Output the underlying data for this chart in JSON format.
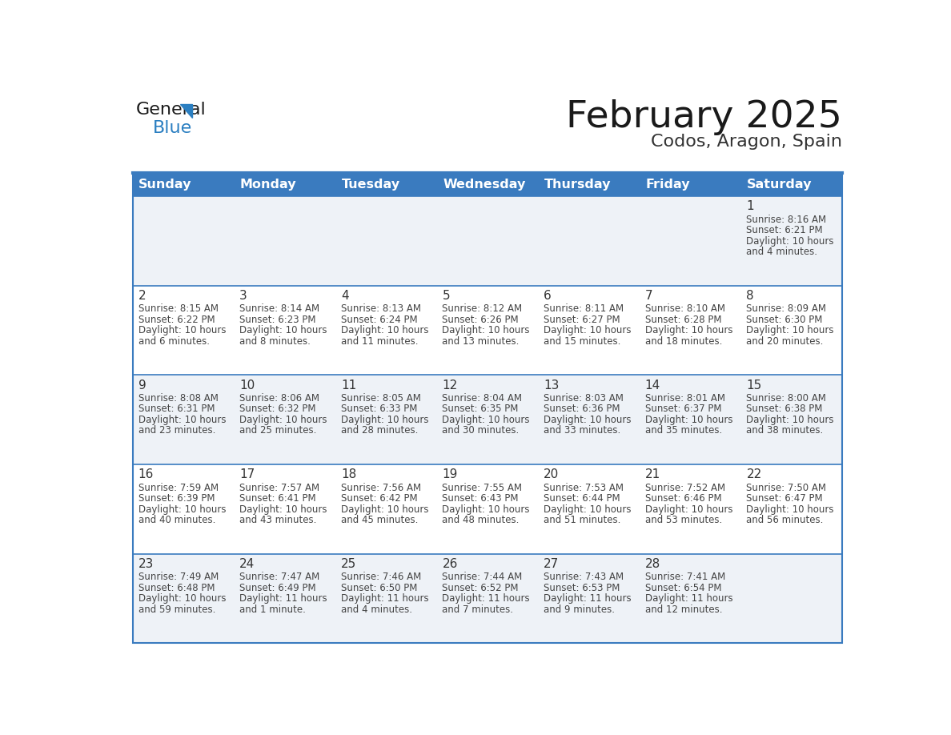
{
  "title": "February 2025",
  "subtitle": "Codos, Aragon, Spain",
  "days_of_week": [
    "Sunday",
    "Monday",
    "Tuesday",
    "Wednesday",
    "Thursday",
    "Friday",
    "Saturday"
  ],
  "header_bg": "#3a7bbf",
  "header_text": "#ffffff",
  "row_bg_odd": "#eef2f7",
  "row_bg_even": "#ffffff",
  "border_color": "#3a7bbf",
  "day_number_color": "#333333",
  "cell_text_color": "#444444",
  "title_color": "#1a1a1a",
  "subtitle_color": "#333333",
  "logo_general_color": "#1a1a1a",
  "logo_blue_color": "#2b7fc1",
  "calendar_data": [
    [
      null,
      null,
      null,
      null,
      null,
      null,
      {
        "day": 1,
        "sunrise": "8:16 AM",
        "sunset": "6:21 PM",
        "daylight_line1": "Daylight: 10 hours",
        "daylight_line2": "and 4 minutes."
      }
    ],
    [
      {
        "day": 2,
        "sunrise": "8:15 AM",
        "sunset": "6:22 PM",
        "daylight_line1": "Daylight: 10 hours",
        "daylight_line2": "and 6 minutes."
      },
      {
        "day": 3,
        "sunrise": "8:14 AM",
        "sunset": "6:23 PM",
        "daylight_line1": "Daylight: 10 hours",
        "daylight_line2": "and 8 minutes."
      },
      {
        "day": 4,
        "sunrise": "8:13 AM",
        "sunset": "6:24 PM",
        "daylight_line1": "Daylight: 10 hours",
        "daylight_line2": "and 11 minutes."
      },
      {
        "day": 5,
        "sunrise": "8:12 AM",
        "sunset": "6:26 PM",
        "daylight_line1": "Daylight: 10 hours",
        "daylight_line2": "and 13 minutes."
      },
      {
        "day": 6,
        "sunrise": "8:11 AM",
        "sunset": "6:27 PM",
        "daylight_line1": "Daylight: 10 hours",
        "daylight_line2": "and 15 minutes."
      },
      {
        "day": 7,
        "sunrise": "8:10 AM",
        "sunset": "6:28 PM",
        "daylight_line1": "Daylight: 10 hours",
        "daylight_line2": "and 18 minutes."
      },
      {
        "day": 8,
        "sunrise": "8:09 AM",
        "sunset": "6:30 PM",
        "daylight_line1": "Daylight: 10 hours",
        "daylight_line2": "and 20 minutes."
      }
    ],
    [
      {
        "day": 9,
        "sunrise": "8:08 AM",
        "sunset": "6:31 PM",
        "daylight_line1": "Daylight: 10 hours",
        "daylight_line2": "and 23 minutes."
      },
      {
        "day": 10,
        "sunrise": "8:06 AM",
        "sunset": "6:32 PM",
        "daylight_line1": "Daylight: 10 hours",
        "daylight_line2": "and 25 minutes."
      },
      {
        "day": 11,
        "sunrise": "8:05 AM",
        "sunset": "6:33 PM",
        "daylight_line1": "Daylight: 10 hours",
        "daylight_line2": "and 28 minutes."
      },
      {
        "day": 12,
        "sunrise": "8:04 AM",
        "sunset": "6:35 PM",
        "daylight_line1": "Daylight: 10 hours",
        "daylight_line2": "and 30 minutes."
      },
      {
        "day": 13,
        "sunrise": "8:03 AM",
        "sunset": "6:36 PM",
        "daylight_line1": "Daylight: 10 hours",
        "daylight_line2": "and 33 minutes."
      },
      {
        "day": 14,
        "sunrise": "8:01 AM",
        "sunset": "6:37 PM",
        "daylight_line1": "Daylight: 10 hours",
        "daylight_line2": "and 35 minutes."
      },
      {
        "day": 15,
        "sunrise": "8:00 AM",
        "sunset": "6:38 PM",
        "daylight_line1": "Daylight: 10 hours",
        "daylight_line2": "and 38 minutes."
      }
    ],
    [
      {
        "day": 16,
        "sunrise": "7:59 AM",
        "sunset": "6:39 PM",
        "daylight_line1": "Daylight: 10 hours",
        "daylight_line2": "and 40 minutes."
      },
      {
        "day": 17,
        "sunrise": "7:57 AM",
        "sunset": "6:41 PM",
        "daylight_line1": "Daylight: 10 hours",
        "daylight_line2": "and 43 minutes."
      },
      {
        "day": 18,
        "sunrise": "7:56 AM",
        "sunset": "6:42 PM",
        "daylight_line1": "Daylight: 10 hours",
        "daylight_line2": "and 45 minutes."
      },
      {
        "day": 19,
        "sunrise": "7:55 AM",
        "sunset": "6:43 PM",
        "daylight_line1": "Daylight: 10 hours",
        "daylight_line2": "and 48 minutes."
      },
      {
        "day": 20,
        "sunrise": "7:53 AM",
        "sunset": "6:44 PM",
        "daylight_line1": "Daylight: 10 hours",
        "daylight_line2": "and 51 minutes."
      },
      {
        "day": 21,
        "sunrise": "7:52 AM",
        "sunset": "6:46 PM",
        "daylight_line1": "Daylight: 10 hours",
        "daylight_line2": "and 53 minutes."
      },
      {
        "day": 22,
        "sunrise": "7:50 AM",
        "sunset": "6:47 PM",
        "daylight_line1": "Daylight: 10 hours",
        "daylight_line2": "and 56 minutes."
      }
    ],
    [
      {
        "day": 23,
        "sunrise": "7:49 AM",
        "sunset": "6:48 PM",
        "daylight_line1": "Daylight: 10 hours",
        "daylight_line2": "and 59 minutes."
      },
      {
        "day": 24,
        "sunrise": "7:47 AM",
        "sunset": "6:49 PM",
        "daylight_line1": "Daylight: 11 hours",
        "daylight_line2": "and 1 minute."
      },
      {
        "day": 25,
        "sunrise": "7:46 AM",
        "sunset": "6:50 PM",
        "daylight_line1": "Daylight: 11 hours",
        "daylight_line2": "and 4 minutes."
      },
      {
        "day": 26,
        "sunrise": "7:44 AM",
        "sunset": "6:52 PM",
        "daylight_line1": "Daylight: 11 hours",
        "daylight_line2": "and 7 minutes."
      },
      {
        "day": 27,
        "sunrise": "7:43 AM",
        "sunset": "6:53 PM",
        "daylight_line1": "Daylight: 11 hours",
        "daylight_line2": "and 9 minutes."
      },
      {
        "day": 28,
        "sunrise": "7:41 AM",
        "sunset": "6:54 PM",
        "daylight_line1": "Daylight: 11 hours",
        "daylight_line2": "and 12 minutes."
      },
      null
    ]
  ]
}
